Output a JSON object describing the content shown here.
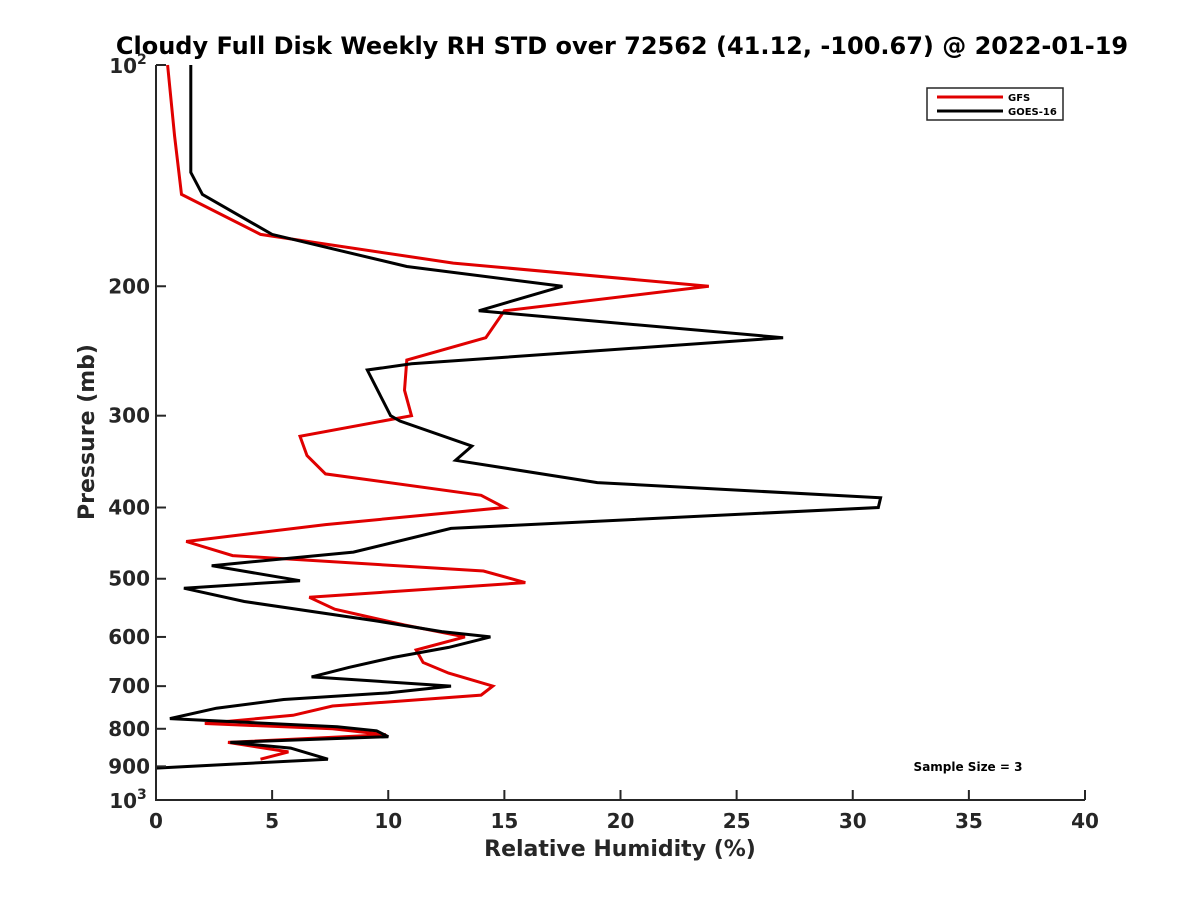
{
  "chart_data": {
    "type": "line",
    "title": "Cloudy Full Disk Weekly RH STD over 72562 (41.12, -100.67) @ 2022-01-19",
    "xlabel": "Relative Humidity (%)",
    "ylabel": "Pressure (mb)",
    "xlim": [
      0,
      40
    ],
    "ylim": [
      100,
      1000
    ],
    "y_scale": "log",
    "y_reversed": true,
    "grid": false,
    "legend_position": "top-right",
    "x_ticks": [
      "0",
      "5",
      "10",
      "15",
      "20",
      "25",
      "30",
      "35",
      "40"
    ],
    "y_ticks": [
      {
        "value": 100,
        "base": "10",
        "exp": "2"
      },
      {
        "value": 200,
        "label": "200"
      },
      {
        "value": 300,
        "label": "300"
      },
      {
        "value": 400,
        "label": "400"
      },
      {
        "value": 500,
        "label": "500"
      },
      {
        "value": 600,
        "label": "600"
      },
      {
        "value": 700,
        "label": "700"
      },
      {
        "value": 800,
        "label": "800"
      },
      {
        "value": 900,
        "label": "900"
      },
      {
        "value": 1000,
        "base": "10",
        "exp": "3"
      }
    ],
    "series": [
      {
        "name": "GFS",
        "color": "#e00000",
        "x": [
          0.5,
          0.8,
          1.1,
          4.5,
          12.8,
          23.8,
          15.0,
          14.2,
          10.8,
          10.7,
          11.0,
          6.2,
          6.5,
          7.3,
          14.0,
          15.0,
          7.3,
          1.3,
          3.3,
          14.1,
          15.9,
          6.6,
          7.7,
          10.7,
          13.3,
          11.2,
          11.5,
          12.6,
          14.5,
          14.0,
          7.6,
          5.9,
          2.1,
          7.6,
          9.9,
          3.1,
          5.7,
          4.5
        ],
        "y": [
          100,
          125,
          150,
          170,
          186,
          200,
          216,
          235,
          252,
          277,
          300,
          320,
          340,
          360,
          385,
          400,
          422,
          445,
          465,
          488,
          506,
          530,
          550,
          578,
          600,
          625,
          650,
          672,
          700,
          720,
          745,
          767,
          787,
          800,
          815,
          835,
          860,
          880
        ]
      },
      {
        "name": "GOES-16",
        "color": "#000000",
        "x": [
          1.5,
          1.5,
          1.5,
          2.0,
          5.0,
          10.8,
          17.5,
          13.9,
          27.0,
          11.0,
          9.1,
          10.1,
          10.5,
          13.6,
          12.9,
          19.0,
          31.2,
          31.1,
          12.7,
          8.5,
          2.4,
          6.2,
          1.2,
          3.8,
          9.4,
          12.3,
          14.4,
          12.6,
          10.2,
          8.3,
          6.7,
          12.7,
          10.0,
          5.5,
          2.6,
          0.6,
          7.8,
          9.5,
          10.0,
          3.2,
          5.8,
          7.4,
          0.0
        ],
        "y": [
          100,
          125,
          140,
          150,
          170,
          188,
          200,
          216,
          235,
          255,
          260,
          300,
          305,
          330,
          345,
          370,
          388,
          400,
          427,
          460,
          480,
          503,
          515,
          537,
          570,
          590,
          600,
          620,
          640,
          660,
          680,
          700,
          715,
          730,
          750,
          775,
          795,
          805,
          820,
          835,
          850,
          880,
          905
        ]
      }
    ],
    "annotations": [
      "Sample Size = 3"
    ]
  }
}
